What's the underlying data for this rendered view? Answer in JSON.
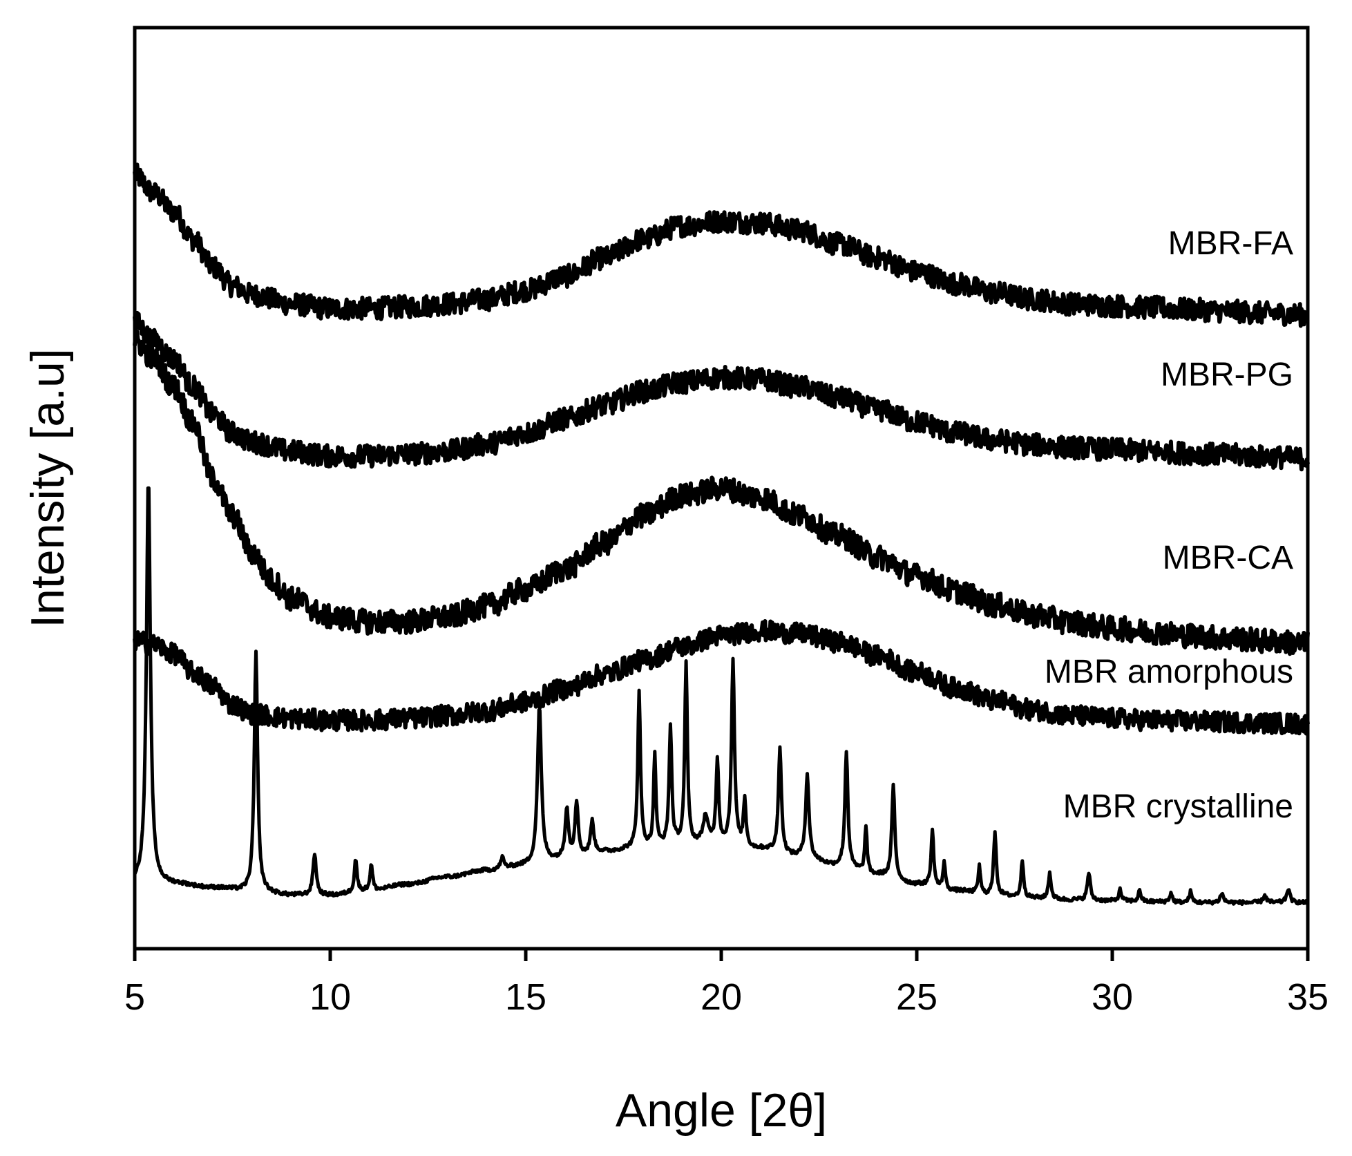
{
  "chart_data": {
    "type": "line",
    "title": "",
    "xlabel": "Angle [2θ]",
    "ylabel": "Intensity [a.u]",
    "xlim": [
      5,
      35
    ],
    "ylim": [
      0,
      1
    ],
    "x_ticks": [
      "5",
      "10",
      "15",
      "20",
      "25",
      "30",
      "35"
    ],
    "y_ticks_visible": false,
    "grid": false,
    "legend": "none (labels placed at right end of each curve)",
    "series": [
      {
        "name": "MBR-FA",
        "label": "MBR-FA",
        "noise": 0.012,
        "points": [
          [
            5,
            0.84
          ],
          [
            5.5,
            0.82
          ],
          [
            6,
            0.8
          ],
          [
            6.5,
            0.77
          ],
          [
            7,
            0.74
          ],
          [
            7.5,
            0.72
          ],
          [
            8,
            0.71
          ],
          [
            9,
            0.7
          ],
          [
            10,
            0.695
          ],
          [
            11,
            0.695
          ],
          [
            12,
            0.697
          ],
          [
            13,
            0.7
          ],
          [
            14,
            0.705
          ],
          [
            15,
            0.715
          ],
          [
            16,
            0.73
          ],
          [
            17,
            0.75
          ],
          [
            18,
            0.77
          ],
          [
            19,
            0.785
          ],
          [
            20,
            0.79
          ],
          [
            21,
            0.788
          ],
          [
            22,
            0.78
          ],
          [
            23,
            0.765
          ],
          [
            24,
            0.75
          ],
          [
            25,
            0.735
          ],
          [
            26,
            0.722
          ],
          [
            27,
            0.712
          ],
          [
            28,
            0.705
          ],
          [
            29,
            0.7
          ],
          [
            30,
            0.698
          ],
          [
            31,
            0.696
          ],
          [
            32,
            0.694
          ],
          [
            33,
            0.692
          ],
          [
            34,
            0.69
          ],
          [
            35,
            0.688
          ]
        ]
      },
      {
        "name": "MBR-PG",
        "label": "MBR-PG",
        "noise": 0.012,
        "points": [
          [
            5,
            0.68
          ],
          [
            5.5,
            0.66
          ],
          [
            6,
            0.64
          ],
          [
            6.5,
            0.61
          ],
          [
            7,
            0.58
          ],
          [
            7.5,
            0.56
          ],
          [
            8,
            0.55
          ],
          [
            9,
            0.54
          ],
          [
            10,
            0.535
          ],
          [
            11,
            0.535
          ],
          [
            12,
            0.537
          ],
          [
            13,
            0.54
          ],
          [
            14,
            0.548
          ],
          [
            15,
            0.56
          ],
          [
            16,
            0.575
          ],
          [
            17,
            0.59
          ],
          [
            18,
            0.605
          ],
          [
            19,
            0.615
          ],
          [
            20,
            0.62
          ],
          [
            21,
            0.618
          ],
          [
            22,
            0.61
          ],
          [
            23,
            0.598
          ],
          [
            24,
            0.585
          ],
          [
            25,
            0.572
          ],
          [
            26,
            0.56
          ],
          [
            27,
            0.552
          ],
          [
            28,
            0.547
          ],
          [
            29,
            0.544
          ],
          [
            30,
            0.542
          ],
          [
            31,
            0.54
          ],
          [
            32,
            0.538
          ],
          [
            33,
            0.536
          ],
          [
            34,
            0.534
          ],
          [
            35,
            0.532
          ]
        ]
      },
      {
        "name": "MBR-CA",
        "label": "MBR-CA",
        "noise": 0.013,
        "points": [
          [
            5,
            0.66
          ],
          [
            5.5,
            0.64
          ],
          [
            6,
            0.61
          ],
          [
            6.5,
            0.57
          ],
          [
            7,
            0.51
          ],
          [
            7.5,
            0.47
          ],
          [
            8,
            0.43
          ],
          [
            8.5,
            0.4
          ],
          [
            9,
            0.38
          ],
          [
            10,
            0.36
          ],
          [
            11,
            0.355
          ],
          [
            12,
            0.355
          ],
          [
            13,
            0.36
          ],
          [
            14,
            0.372
          ],
          [
            15,
            0.39
          ],
          [
            16,
            0.412
          ],
          [
            17,
            0.44
          ],
          [
            18,
            0.47
          ],
          [
            19,
            0.492
          ],
          [
            20,
            0.5
          ],
          [
            21,
            0.49
          ],
          [
            22,
            0.47
          ],
          [
            23,
            0.448
          ],
          [
            24,
            0.425
          ],
          [
            25,
            0.405
          ],
          [
            26,
            0.388
          ],
          [
            27,
            0.373
          ],
          [
            28,
            0.362
          ],
          [
            29,
            0.354
          ],
          [
            30,
            0.348
          ],
          [
            31,
            0.344
          ],
          [
            32,
            0.34
          ],
          [
            33,
            0.337
          ],
          [
            34,
            0.334
          ],
          [
            35,
            0.331
          ]
        ]
      },
      {
        "name": "MBR amorphous",
        "label": "MBR amorphous",
        "noise": 0.011,
        "points": [
          [
            5,
            0.335
          ],
          [
            5.5,
            0.33
          ],
          [
            6,
            0.32
          ],
          [
            6.5,
            0.3
          ],
          [
            7,
            0.285
          ],
          [
            7.5,
            0.265
          ],
          [
            8,
            0.255
          ],
          [
            9,
            0.25
          ],
          [
            10,
            0.248
          ],
          [
            11,
            0.248
          ],
          [
            12,
            0.25
          ],
          [
            13,
            0.253
          ],
          [
            14,
            0.258
          ],
          [
            15,
            0.268
          ],
          [
            16,
            0.282
          ],
          [
            17,
            0.298
          ],
          [
            18,
            0.313
          ],
          [
            19,
            0.328
          ],
          [
            20,
            0.34
          ],
          [
            21,
            0.345
          ],
          [
            22,
            0.342
          ],
          [
            23,
            0.333
          ],
          [
            24,
            0.318
          ],
          [
            25,
            0.3
          ],
          [
            26,
            0.283
          ],
          [
            27,
            0.269
          ],
          [
            28,
            0.259
          ],
          [
            29,
            0.253
          ],
          [
            30,
            0.25
          ],
          [
            31,
            0.248
          ],
          [
            32,
            0.247
          ],
          [
            33,
            0.246
          ],
          [
            34,
            0.245
          ],
          [
            35,
            0.244
          ]
        ]
      },
      {
        "name": "MBR crystalline",
        "label": "MBR crystalline",
        "noise": 0.002,
        "baseline": [
          [
            5,
            0.07
          ],
          [
            6,
            0.07
          ],
          [
            7,
            0.066
          ],
          [
            8,
            0.062
          ],
          [
            9,
            0.058
          ],
          [
            10,
            0.058
          ],
          [
            11,
            0.063
          ],
          [
            12,
            0.07
          ],
          [
            13,
            0.078
          ],
          [
            14,
            0.085
          ],
          [
            15,
            0.09
          ],
          [
            16,
            0.097
          ],
          [
            17,
            0.105
          ],
          [
            18,
            0.11
          ],
          [
            19,
            0.113
          ],
          [
            20,
            0.113
          ],
          [
            21,
            0.108
          ],
          [
            22,
            0.1
          ],
          [
            23,
            0.09
          ],
          [
            24,
            0.08
          ],
          [
            25,
            0.07
          ],
          [
            26,
            0.063
          ],
          [
            27,
            0.058
          ],
          [
            28,
            0.055
          ],
          [
            29,
            0.053
          ],
          [
            30,
            0.052
          ],
          [
            31,
            0.051
          ],
          [
            32,
            0.05
          ],
          [
            33,
            0.05
          ],
          [
            34,
            0.05
          ],
          [
            35,
            0.05
          ]
        ],
        "peaks": [
          {
            "x": 5.35,
            "h": 0.44,
            "w": 0.12
          },
          {
            "x": 8.1,
            "h": 0.26,
            "w": 0.1
          },
          {
            "x": 9.6,
            "h": 0.045,
            "w": 0.1
          },
          {
            "x": 10.65,
            "h": 0.036,
            "w": 0.08
          },
          {
            "x": 11.05,
            "h": 0.028,
            "w": 0.08
          },
          {
            "x": 14.4,
            "h": 0.012,
            "w": 0.1
          },
          {
            "x": 15.35,
            "h": 0.17,
            "w": 0.12
          },
          {
            "x": 16.05,
            "h": 0.055,
            "w": 0.1
          },
          {
            "x": 16.3,
            "h": 0.06,
            "w": 0.1
          },
          {
            "x": 16.7,
            "h": 0.035,
            "w": 0.1
          },
          {
            "x": 17.9,
            "h": 0.17,
            "w": 0.08
          },
          {
            "x": 18.3,
            "h": 0.1,
            "w": 0.07
          },
          {
            "x": 18.7,
            "h": 0.128,
            "w": 0.08
          },
          {
            "x": 19.1,
            "h": 0.195,
            "w": 0.08
          },
          {
            "x": 19.6,
            "h": 0.03,
            "w": 0.15
          },
          {
            "x": 19.9,
            "h": 0.09,
            "w": 0.08
          },
          {
            "x": 20.3,
            "h": 0.2,
            "w": 0.09
          },
          {
            "x": 20.6,
            "h": 0.05,
            "w": 0.08
          },
          {
            "x": 21.5,
            "h": 0.115,
            "w": 0.09
          },
          {
            "x": 22.2,
            "h": 0.09,
            "w": 0.1
          },
          {
            "x": 23.2,
            "h": 0.125,
            "w": 0.09
          },
          {
            "x": 23.7,
            "h": 0.05,
            "w": 0.07
          },
          {
            "x": 24.4,
            "h": 0.1,
            "w": 0.09
          },
          {
            "x": 25.4,
            "h": 0.06,
            "w": 0.08
          },
          {
            "x": 25.7,
            "h": 0.03,
            "w": 0.07
          },
          {
            "x": 26.6,
            "h": 0.03,
            "w": 0.07
          },
          {
            "x": 27.0,
            "h": 0.07,
            "w": 0.08
          },
          {
            "x": 27.7,
            "h": 0.04,
            "w": 0.08
          },
          {
            "x": 28.4,
            "h": 0.028,
            "w": 0.08
          },
          {
            "x": 29.4,
            "h": 0.03,
            "w": 0.09
          },
          {
            "x": 30.2,
            "h": 0.012,
            "w": 0.08
          },
          {
            "x": 30.7,
            "h": 0.012,
            "w": 0.08
          },
          {
            "x": 31.5,
            "h": 0.01,
            "w": 0.08
          },
          {
            "x": 32.0,
            "h": 0.012,
            "w": 0.08
          },
          {
            "x": 32.8,
            "h": 0.01,
            "w": 0.1
          },
          {
            "x": 33.9,
            "h": 0.008,
            "w": 0.1
          },
          {
            "x": 34.5,
            "h": 0.015,
            "w": 0.1
          }
        ]
      }
    ]
  }
}
